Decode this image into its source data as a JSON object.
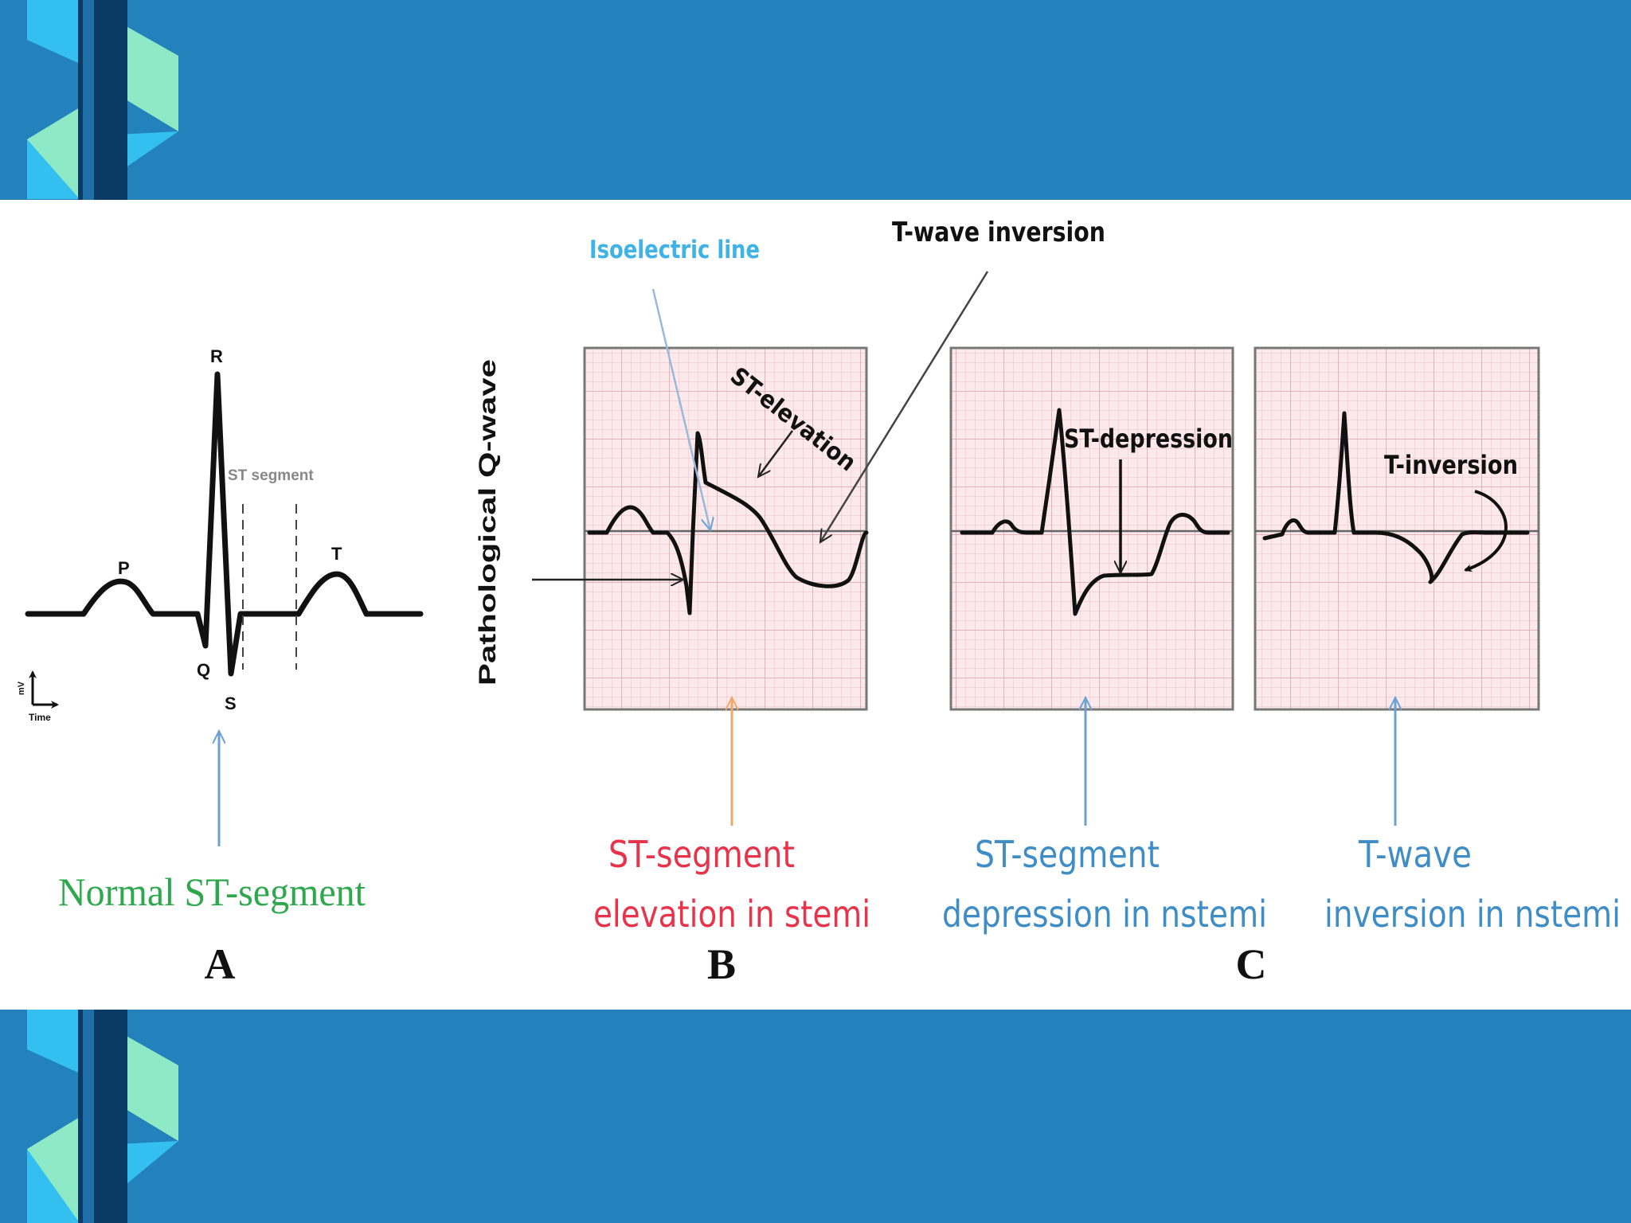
{
  "colors": {
    "background": "#2381bb",
    "ribbon_light": "#33c0f0",
    "ribbon_mint": "#8eeac6",
    "ribbon_dark": "#0b3b64",
    "grid_fill": "#fbe9ec",
    "grid_line": "#e9b8c1",
    "isoelectric_label": "#3fb2e6",
    "normal_caption": "#2ea84c",
    "stemi_caption": "#e8334a",
    "nstemi_caption": "#3f8dc7",
    "orange_arrow": "#f0a868",
    "blue_arrow": "#6aa2d2"
  },
  "panel_a": {
    "wave_labels": {
      "p": "P",
      "q": "Q",
      "r": "R",
      "s": "S",
      "t": "T"
    },
    "st_segment_label": "ST segment",
    "axis_y_label": "mV",
    "axis_x_label": "Time",
    "caption": "Normal ST-segment",
    "letter": "A"
  },
  "panel_b": {
    "isoelectric_label": "Isoelectric line",
    "t_wave_inversion_label": "T-wave inversion",
    "st_elevation_label": "ST-elevation",
    "pathological_q_label": "Pathological Q-wave",
    "caption_line1": "ST-segment",
    "caption_line2": "elevation in stemi",
    "letter": "B"
  },
  "panel_c": {
    "st_depression_label": "ST-depression",
    "t_inversion_label": "T-inversion",
    "caption1_line1": "ST-segment",
    "caption1_line2": "depression in nstemi",
    "caption2_line1": "T-wave",
    "caption2_line2": "inversion in nstemi",
    "letter": "C"
  }
}
